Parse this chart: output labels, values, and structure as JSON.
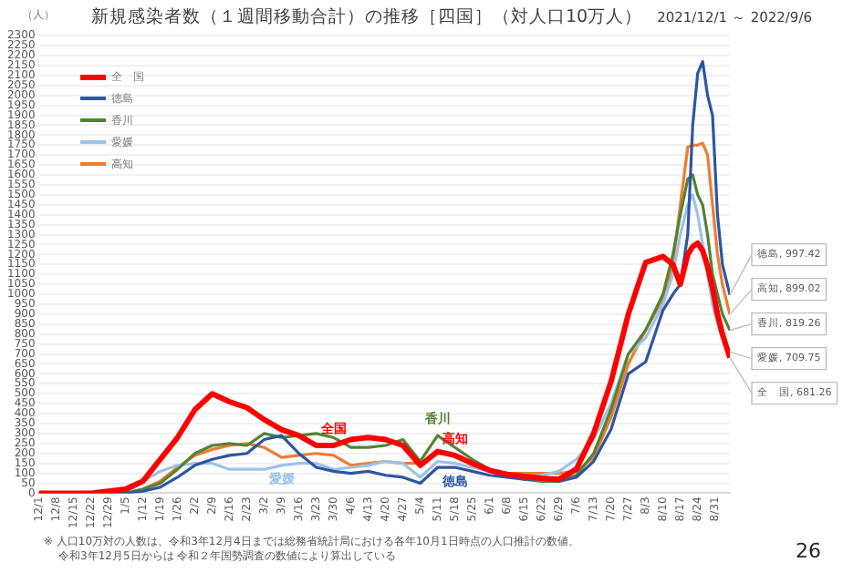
{
  "chart_data": {
    "type": "line",
    "title": "新規感染者数（１週間移動合計）の推移［四国］（対人口10万人）",
    "subtitle": "2021/12/1 ～ 2022/9/6",
    "ylabel": "（人）",
    "x": [
      "2021-12-01",
      "2021-12-08",
      "2021-12-15",
      "2021-12-22",
      "2021-12-29",
      "2022-01-05",
      "2022-01-12",
      "2022-01-19",
      "2022-01-26",
      "2022-02-02",
      "2022-02-09",
      "2022-02-16",
      "2022-02-23",
      "2022-03-02",
      "2022-03-09",
      "2022-03-16",
      "2022-03-23",
      "2022-03-30",
      "2022-04-06",
      "2022-04-13",
      "2022-04-20",
      "2022-04-27",
      "2022-05-04",
      "2022-05-11",
      "2022-05-18",
      "2022-05-25",
      "2022-06-01",
      "2022-06-08",
      "2022-06-15",
      "2022-06-22",
      "2022-06-29",
      "2022-07-06",
      "2022-07-13",
      "2022-07-20",
      "2022-07-27",
      "2022-08-03",
      "2022-08-10",
      "2022-08-14",
      "2022-08-17",
      "2022-08-20",
      "2022-08-22",
      "2022-08-24",
      "2022-08-26",
      "2022-08-28",
      "2022-08-30",
      "2022-09-01",
      "2022-09-03",
      "2022-09-06"
    ],
    "series": [
      {
        "name": "全　国",
        "color": "#ff0000",
        "values": [
          0,
          0,
          0,
          0,
          10,
          20,
          60,
          170,
          280,
          420,
          500,
          460,
          430,
          370,
          320,
          290,
          240,
          240,
          270,
          280,
          270,
          240,
          140,
          210,
          190,
          150,
          115,
          95,
          85,
          75,
          70,
          120,
          300,
          560,
          900,
          1160,
          1190,
          1150,
          1050,
          1200,
          1240,
          1257,
          1220,
          1140,
          1030,
          900,
          800,
          681.26
        ]
      },
      {
        "name": "徳島",
        "color": "#2f55a4",
        "values": [
          null,
          null,
          null,
          null,
          0,
          0,
          10,
          30,
          80,
          140,
          170,
          190,
          200,
          270,
          290,
          200,
          130,
          110,
          100,
          110,
          90,
          80,
          50,
          130,
          130,
          110,
          90,
          80,
          70,
          70,
          60,
          80,
          160,
          320,
          600,
          660,
          920,
          1000,
          1050,
          1300,
          1850,
          2110,
          2170,
          2000,
          1900,
          1400,
          1150,
          997.42
        ]
      },
      {
        "name": "香川",
        "color": "#548235",
        "values": [
          0,
          0,
          0,
          0,
          0,
          0,
          20,
          50,
          120,
          200,
          240,
          250,
          240,
          300,
          280,
          290,
          300,
          280,
          230,
          230,
          240,
          270,
          160,
          290,
          230,
          170,
          120,
          90,
          70,
          60,
          60,
          90,
          200,
          420,
          700,
          820,
          1000,
          1200,
          1400,
          1580,
          1600,
          1500,
          1450,
          1300,
          1100,
          1000,
          900,
          819.26
        ]
      },
      {
        "name": "愛媛",
        "color": "#9dc3e6",
        "values": [
          0,
          0,
          0,
          0,
          0,
          0,
          60,
          110,
          140,
          150,
          150,
          120,
          120,
          120,
          140,
          150,
          150,
          120,
          130,
          140,
          160,
          150,
          80,
          160,
          150,
          130,
          110,
          90,
          80,
          90,
          110,
          170,
          270,
          450,
          700,
          780,
          950,
          1100,
          1300,
          1450,
          1500,
          1400,
          1250,
          1100,
          950,
          850,
          780,
          709.75
        ]
      },
      {
        "name": "高知",
        "color": "#ed7d31",
        "values": [
          0,
          0,
          0,
          0,
          0,
          0,
          20,
          60,
          130,
          190,
          220,
          240,
          250,
          230,
          180,
          190,
          200,
          190,
          140,
          150,
          160,
          150,
          150,
          200,
          190,
          150,
          110,
          100,
          100,
          100,
          100,
          110,
          180,
          380,
          650,
          820,
          980,
          1150,
          1450,
          1740,
          1750,
          1750,
          1760,
          1700,
          1450,
          1200,
          1050,
          899.02
        ]
      }
    ],
    "xlim": [
      "2021-12-01",
      "2022-09-06"
    ],
    "ylim": [
      0,
      2300
    ],
    "yticks": [
      0,
      50,
      100,
      150,
      200,
      250,
      300,
      350,
      400,
      450,
      500,
      550,
      600,
      650,
      700,
      750,
      800,
      850,
      900,
      950,
      1000,
      1050,
      1100,
      1150,
      1200,
      1250,
      1300,
      1350,
      1400,
      1450,
      1500,
      1550,
      1600,
      1650,
      1700,
      1750,
      1800,
      1850,
      1900,
      1950,
      2000,
      2050,
      2100,
      2150,
      2200,
      2250,
      2300
    ],
    "xticks": [
      {
        "value": "2021-12-01",
        "label": "12/1"
      },
      {
        "value": "2021-12-08",
        "label": "12/8"
      },
      {
        "value": "2021-12-15",
        "label": "12/15"
      },
      {
        "value": "2021-12-22",
        "label": "12/22"
      },
      {
        "value": "2021-12-29",
        "label": "12/29"
      },
      {
        "value": "2022-01-05",
        "label": "1/5"
      },
      {
        "value": "2022-01-12",
        "label": "1/12"
      },
      {
        "value": "2022-01-19",
        "label": "1/19"
      },
      {
        "value": "2022-01-26",
        "label": "1/26"
      },
      {
        "value": "2022-02-02",
        "label": "2/2"
      },
      {
        "value": "2022-02-09",
        "label": "2/9"
      },
      {
        "value": "2022-02-16",
        "label": "2/16"
      },
      {
        "value": "2022-02-23",
        "label": "2/23"
      },
      {
        "value": "2022-03-02",
        "label": "3/2"
      },
      {
        "value": "2022-03-09",
        "label": "3/9"
      },
      {
        "value": "2022-03-16",
        "label": "3/16"
      },
      {
        "value": "2022-03-23",
        "label": "3/23"
      },
      {
        "value": "2022-03-30",
        "label": "3/30"
      },
      {
        "value": "2022-04-06",
        "label": "4/6"
      },
      {
        "value": "2022-04-13",
        "label": "4/13"
      },
      {
        "value": "2022-04-20",
        "label": "4/20"
      },
      {
        "value": "2022-04-27",
        "label": "4/27"
      },
      {
        "value": "2022-05-04",
        "label": "5/4"
      },
      {
        "value": "2022-05-11",
        "label": "5/11"
      },
      {
        "value": "2022-05-18",
        "label": "5/18"
      },
      {
        "value": "2022-05-25",
        "label": "5/25"
      },
      {
        "value": "2022-06-01",
        "label": "6/1"
      },
      {
        "value": "2022-06-08",
        "label": "6/8"
      },
      {
        "value": "2022-06-15",
        "label": "6/15"
      },
      {
        "value": "2022-06-22",
        "label": "6/22"
      },
      {
        "value": "2022-06-29",
        "label": "6/29"
      },
      {
        "value": "2022-07-06",
        "label": "7/6"
      },
      {
        "value": "2022-07-13",
        "label": "7/13"
      },
      {
        "value": "2022-07-20",
        "label": "7/20"
      },
      {
        "value": "2022-07-27",
        "label": "7/27"
      },
      {
        "value": "2022-08-03",
        "label": "8/3"
      },
      {
        "value": "2022-08-10",
        "label": "8/10"
      },
      {
        "value": "2022-08-17",
        "label": "8/17"
      },
      {
        "value": "2022-08-24",
        "label": "8/24"
      },
      {
        "value": "2022-08-31",
        "label": "8/31"
      }
    ],
    "grid": "y",
    "legend": "top left",
    "marker": "none",
    "line_style": "solid",
    "annotations": [
      {
        "text": "全国",
        "x": "2022-03-30",
        "y": 240
      },
      {
        "text": "愛媛",
        "x": "2022-03-09",
        "y": 140
      },
      {
        "text": "香川",
        "x": "2022-05-11",
        "y": 290
      },
      {
        "text": "高知",
        "x": "2022-05-18",
        "y": 190
      },
      {
        "text": "徳島",
        "x": "2022-05-18",
        "y": 130
      },
      {
        "text": "徳島, 997.42",
        "x": "2022-09-06",
        "y": 997.42
      },
      {
        "text": "高知, 899.02",
        "x": "2022-09-06",
        "y": 899.02
      },
      {
        "text": "香川, 819.26",
        "x": "2022-09-06",
        "y": 819.26
      },
      {
        "text": "愛媛, 709.75",
        "x": "2022-09-06",
        "y": 709.75
      },
      {
        "text": "全　国, 681.26",
        "x": "2022-09-06",
        "y": 681.26
      },
      "※ 人口10万対の人数は、令和3年12月4日までは総務省統計局における各年10月1日時点の人口推計の数値、",
      "令和3年12月5日からは 令和２年国勢調査の数値により算出している",
      "26"
    ]
  }
}
